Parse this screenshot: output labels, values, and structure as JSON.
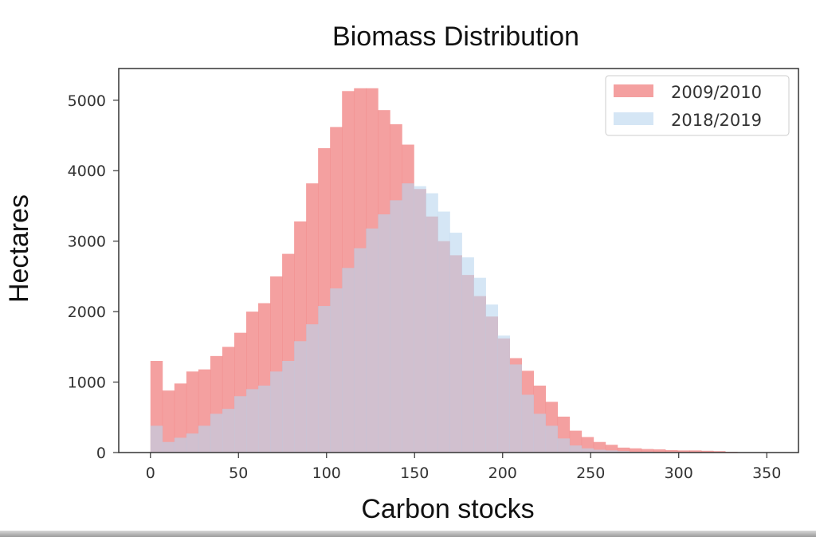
{
  "chart_data": {
    "type": "histogram",
    "title": "Biomass Distribution",
    "xlabel": "Carbon stocks",
    "ylabel": "Hectares",
    "xlim": [
      -18,
      368
    ],
    "ylim": [
      0,
      5450
    ],
    "xticks": [
      0,
      50,
      100,
      150,
      200,
      250,
      300,
      350
    ],
    "yticks": [
      0,
      1000,
      2000,
      3000,
      4000,
      5000
    ],
    "bin_start": 0,
    "bin_width": 6.8,
    "legend_position": "top-right",
    "grid": false,
    "series": [
      {
        "name": "2009/2010",
        "color": "#f08080",
        "opacity": 0.75,
        "values": [
          1300,
          880,
          980,
          1150,
          1180,
          1370,
          1500,
          1700,
          2000,
          2120,
          2500,
          2820,
          3280,
          3820,
          4320,
          4620,
          5130,
          5170,
          5170,
          4860,
          4660,
          4370,
          3740,
          3350,
          3000,
          2800,
          2520,
          2220,
          1930,
          1620,
          1340,
          1160,
          950,
          720,
          510,
          310,
          220,
          150,
          110,
          70,
          60,
          50,
          45,
          35,
          30,
          30,
          25,
          20,
          10,
          5,
          5,
          5
        ]
      },
      {
        "name": "2018/2019",
        "color": "#b9d6ee",
        "opacity": 0.6,
        "values": [
          380,
          150,
          210,
          270,
          380,
          550,
          620,
          800,
          900,
          950,
          1150,
          1300,
          1580,
          1820,
          2080,
          2330,
          2620,
          2900,
          3180,
          3380,
          3580,
          3820,
          3780,
          3680,
          3420,
          3120,
          2770,
          2480,
          2100,
          1660,
          1250,
          820,
          550,
          380,
          200,
          100,
          60,
          40,
          30,
          20,
          10,
          10,
          5,
          5,
          0,
          0,
          0,
          0,
          0,
          0,
          0,
          0
        ]
      }
    ]
  }
}
